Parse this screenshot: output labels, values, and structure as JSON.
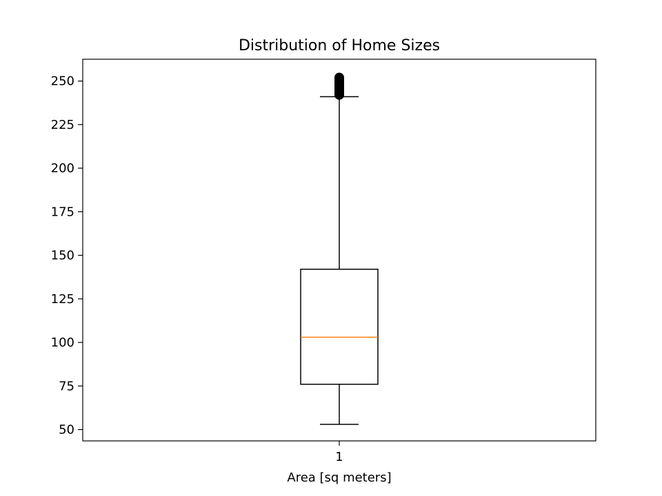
{
  "chart_data": {
    "type": "box",
    "title": "Distribution of Home Sizes",
    "xlabel": "Area [sq meters]",
    "ylabel": "",
    "categories": [
      "1"
    ],
    "ylim": [
      43.5,
      262.5
    ],
    "yticks": [
      50,
      75,
      100,
      125,
      150,
      175,
      200,
      225,
      250
    ],
    "grid": false,
    "boxes": [
      {
        "category": "1",
        "whisker_low": 53,
        "q1": 76,
        "median": 103,
        "q3": 142,
        "whisker_high": 241,
        "outliers": [
          242,
          243,
          244,
          245,
          246,
          247,
          248,
          249,
          250,
          251,
          252
        ]
      }
    ],
    "colors": {
      "box": "#000000",
      "median": "#ff7f0e",
      "outlier": "#000000"
    }
  }
}
